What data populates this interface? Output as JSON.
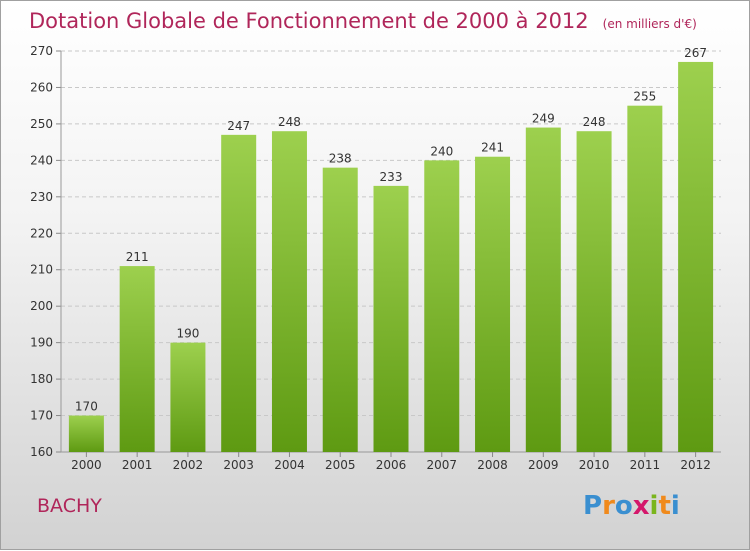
{
  "title": "Dotation Globale de Fonctionnement de 2000 à 2012",
  "subtitle": "(en milliers d'€)",
  "commune": "BACHY",
  "logo": {
    "letters": [
      "P",
      "r",
      "o",
      "x",
      "i",
      "t",
      "i"
    ],
    "colors": [
      "#3a8fd0",
      "#f08a1c",
      "#3a8fd0",
      "#d4176b",
      "#7ab51d",
      "#f08a1c",
      "#3a8fd0"
    ]
  },
  "colors": {
    "bar_top": "#9dd04e",
    "bar_bottom": "#5e9a12",
    "title": "#b0265a"
  },
  "chart_data": {
    "type": "bar",
    "categories": [
      "2000",
      "2001",
      "2002",
      "2003",
      "2004",
      "2005",
      "2006",
      "2007",
      "2008",
      "2009",
      "2010",
      "2011",
      "2012"
    ],
    "values": [
      170,
      211,
      190,
      247,
      248,
      238,
      233,
      240,
      241,
      249,
      248,
      255,
      267
    ],
    "data_labels": [
      "170",
      "211",
      "190",
      "247",
      "248",
      "238",
      "233",
      "240",
      "241",
      "249",
      "248",
      "255",
      "267"
    ],
    "ylim": [
      160,
      270
    ],
    "yticks": [
      160,
      170,
      180,
      190,
      200,
      210,
      220,
      230,
      240,
      250,
      260,
      270
    ],
    "ytick_labels": [
      "160",
      "170",
      "180",
      "190",
      "200",
      "210",
      "220",
      "230",
      "240",
      "250",
      "260",
      "270"
    ],
    "grid": true
  }
}
